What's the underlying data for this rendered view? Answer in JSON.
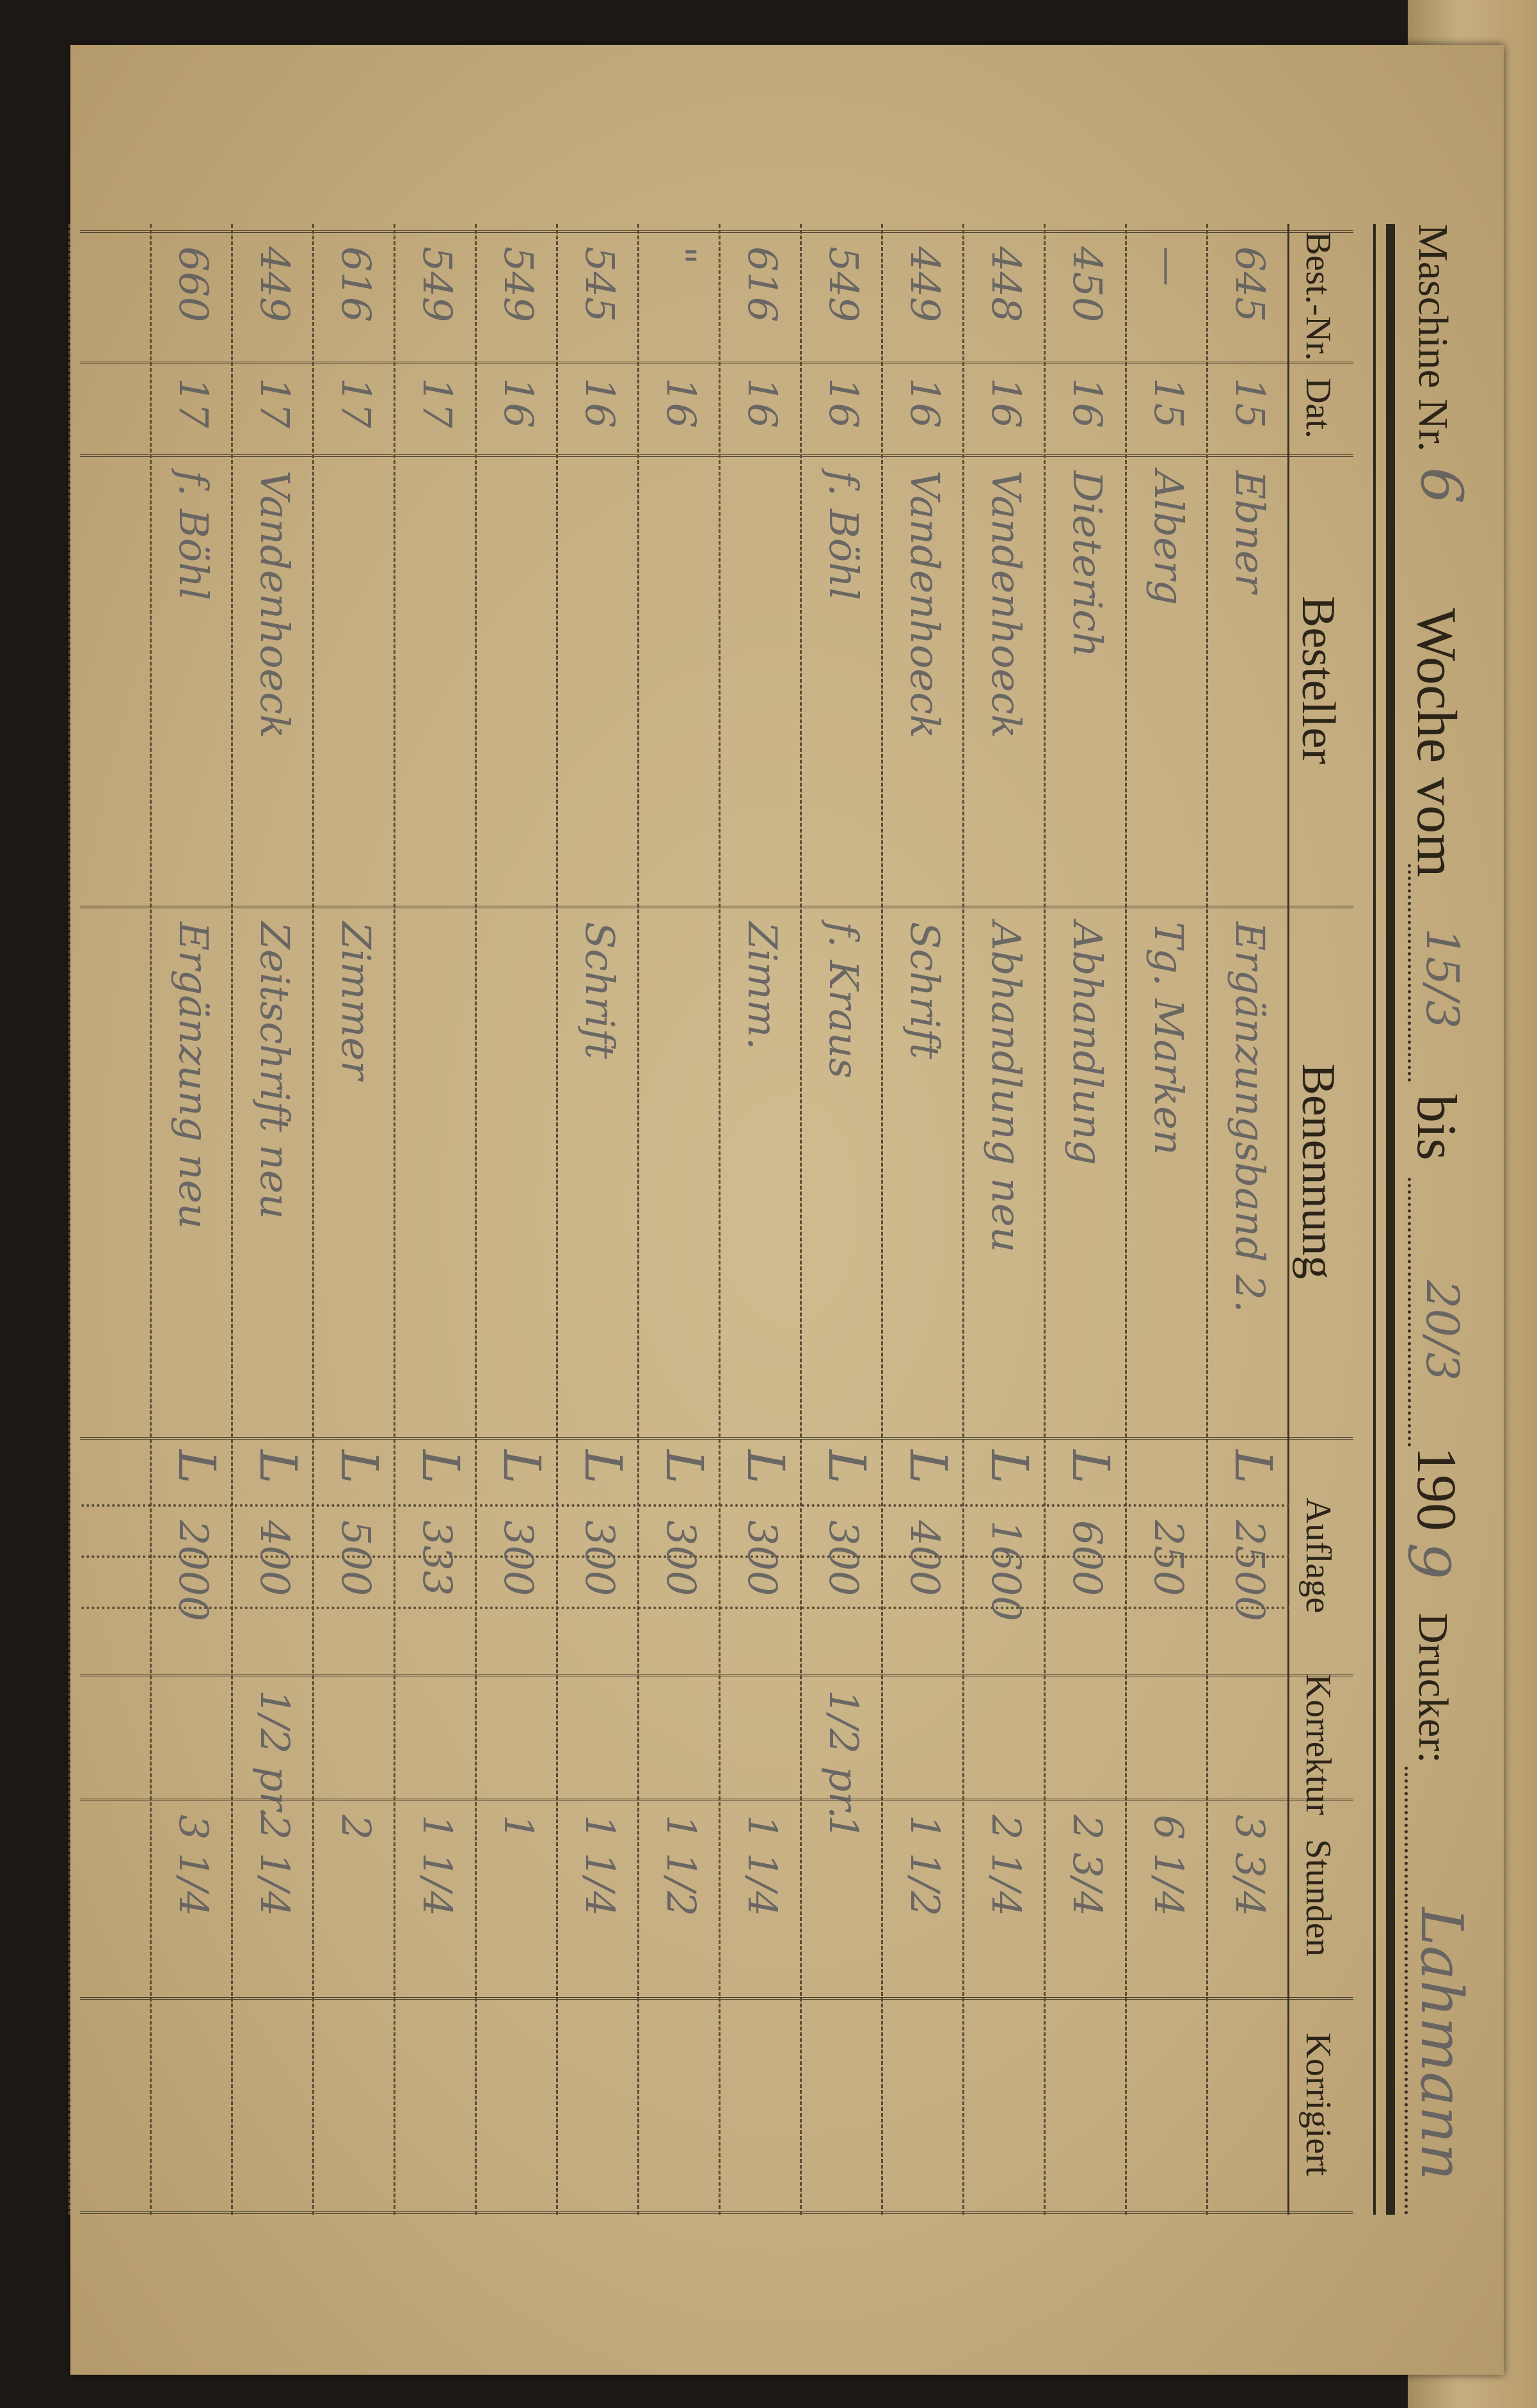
{
  "header": {
    "machine_label": "Maschine Nr.",
    "machine_value": "6",
    "week_label": "Woche vom",
    "week_from": "15/3",
    "until_label": "bis",
    "week_to": "20/3",
    "year_label": "190",
    "year_value": "9",
    "printer_label": "Drucker:",
    "printer_value": "Lahmann"
  },
  "columns": [
    "Best.-Nr.",
    "Dat.",
    "Besteller",
    "Benennung",
    "Auflage",
    "Korrektur",
    "Stunden",
    "Korrigiert"
  ],
  "rows": [
    {
      "best_nr": "645",
      "dat": "15",
      "besteller": "Ebner",
      "benennung": "Ergänzungsband 2.",
      "mark": "L",
      "auflage": "2500",
      "korrektur": "",
      "stunden": "3 3/4",
      "korrigiert": ""
    },
    {
      "best_nr": "—",
      "dat": "15",
      "besteller": "Alberg",
      "benennung": "Tg. Marken",
      "mark": "",
      "auflage": "250",
      "korrektur": "",
      "stunden": "6 1/4",
      "korrigiert": ""
    },
    {
      "best_nr": "450",
      "dat": "16",
      "besteller": "Dieterich",
      "benennung": "Abhandlung",
      "mark": "L",
      "auflage": "600",
      "korrektur": "",
      "stunden": "2 3/4",
      "korrigiert": ""
    },
    {
      "best_nr": "448",
      "dat": "16",
      "besteller": "Vandenhoeck",
      "benennung": "Abhandlung neu",
      "mark": "L",
      "auflage": "1600",
      "korrektur": "",
      "stunden": "2 1/4",
      "korrigiert": ""
    },
    {
      "best_nr": "449",
      "dat": "16",
      "besteller": "Vandenhoeck",
      "benennung": "Schrift",
      "mark": "L",
      "auflage": "400",
      "korrektur": "",
      "stunden": "1 1/2",
      "korrigiert": ""
    },
    {
      "best_nr": "549",
      "dat": "16",
      "besteller": "f. Böhl",
      "benennung": "f. Kraus",
      "mark": "L",
      "auflage": "300",
      "korrektur": "1/2 pr.",
      "stunden": "1",
      "korrigiert": ""
    },
    {
      "best_nr": "616",
      "dat": "16",
      "besteller": "",
      "benennung": "Zimm.",
      "mark": "L",
      "auflage": "300",
      "korrektur": "",
      "stunden": "1 1/4",
      "korrigiert": ""
    },
    {
      "best_nr": "\"",
      "dat": "16",
      "besteller": "",
      "benennung": "",
      "mark": "L",
      "auflage": "300",
      "korrektur": "",
      "stunden": "1 1/2",
      "korrigiert": ""
    },
    {
      "best_nr": "545",
      "dat": "16",
      "besteller": "",
      "benennung": "Schrift",
      "mark": "L",
      "auflage": "300",
      "korrektur": "",
      "stunden": "1 1/4",
      "korrigiert": ""
    },
    {
      "best_nr": "549",
      "dat": "16",
      "besteller": "",
      "benennung": "",
      "mark": "L",
      "auflage": "300",
      "korrektur": "",
      "stunden": "1",
      "korrigiert": ""
    },
    {
      "best_nr": "549",
      "dat": "17",
      "besteller": "",
      "benennung": "",
      "mark": "L",
      "auflage": "333",
      "korrektur": "",
      "stunden": "1 1/4",
      "korrigiert": ""
    },
    {
      "best_nr": "616",
      "dat": "17",
      "besteller": "",
      "benennung": "Zimmer",
      "mark": "L",
      "auflage": "500",
      "korrektur": "",
      "stunden": "2",
      "korrigiert": ""
    },
    {
      "best_nr": "449",
      "dat": "17",
      "besteller": "Vandenhoeck",
      "benennung": "Zeitschrift neu",
      "mark": "L",
      "auflage": "400",
      "korrektur": "1/2 pr.",
      "stunden": "2 1/4",
      "korrigiert": ""
    },
    {
      "best_nr": "660",
      "dat": "17",
      "besteller": "f. Böhl",
      "benennung": "Ergänzung neu",
      "mark": "L",
      "auflage": "2000",
      "korrektur": "",
      "stunden": "3 1/4",
      "korrigiert": ""
    }
  ],
  "colors": {
    "paper": "#c9b48a",
    "ink": "#2c2418",
    "pencil": "#5a5a5e"
  }
}
